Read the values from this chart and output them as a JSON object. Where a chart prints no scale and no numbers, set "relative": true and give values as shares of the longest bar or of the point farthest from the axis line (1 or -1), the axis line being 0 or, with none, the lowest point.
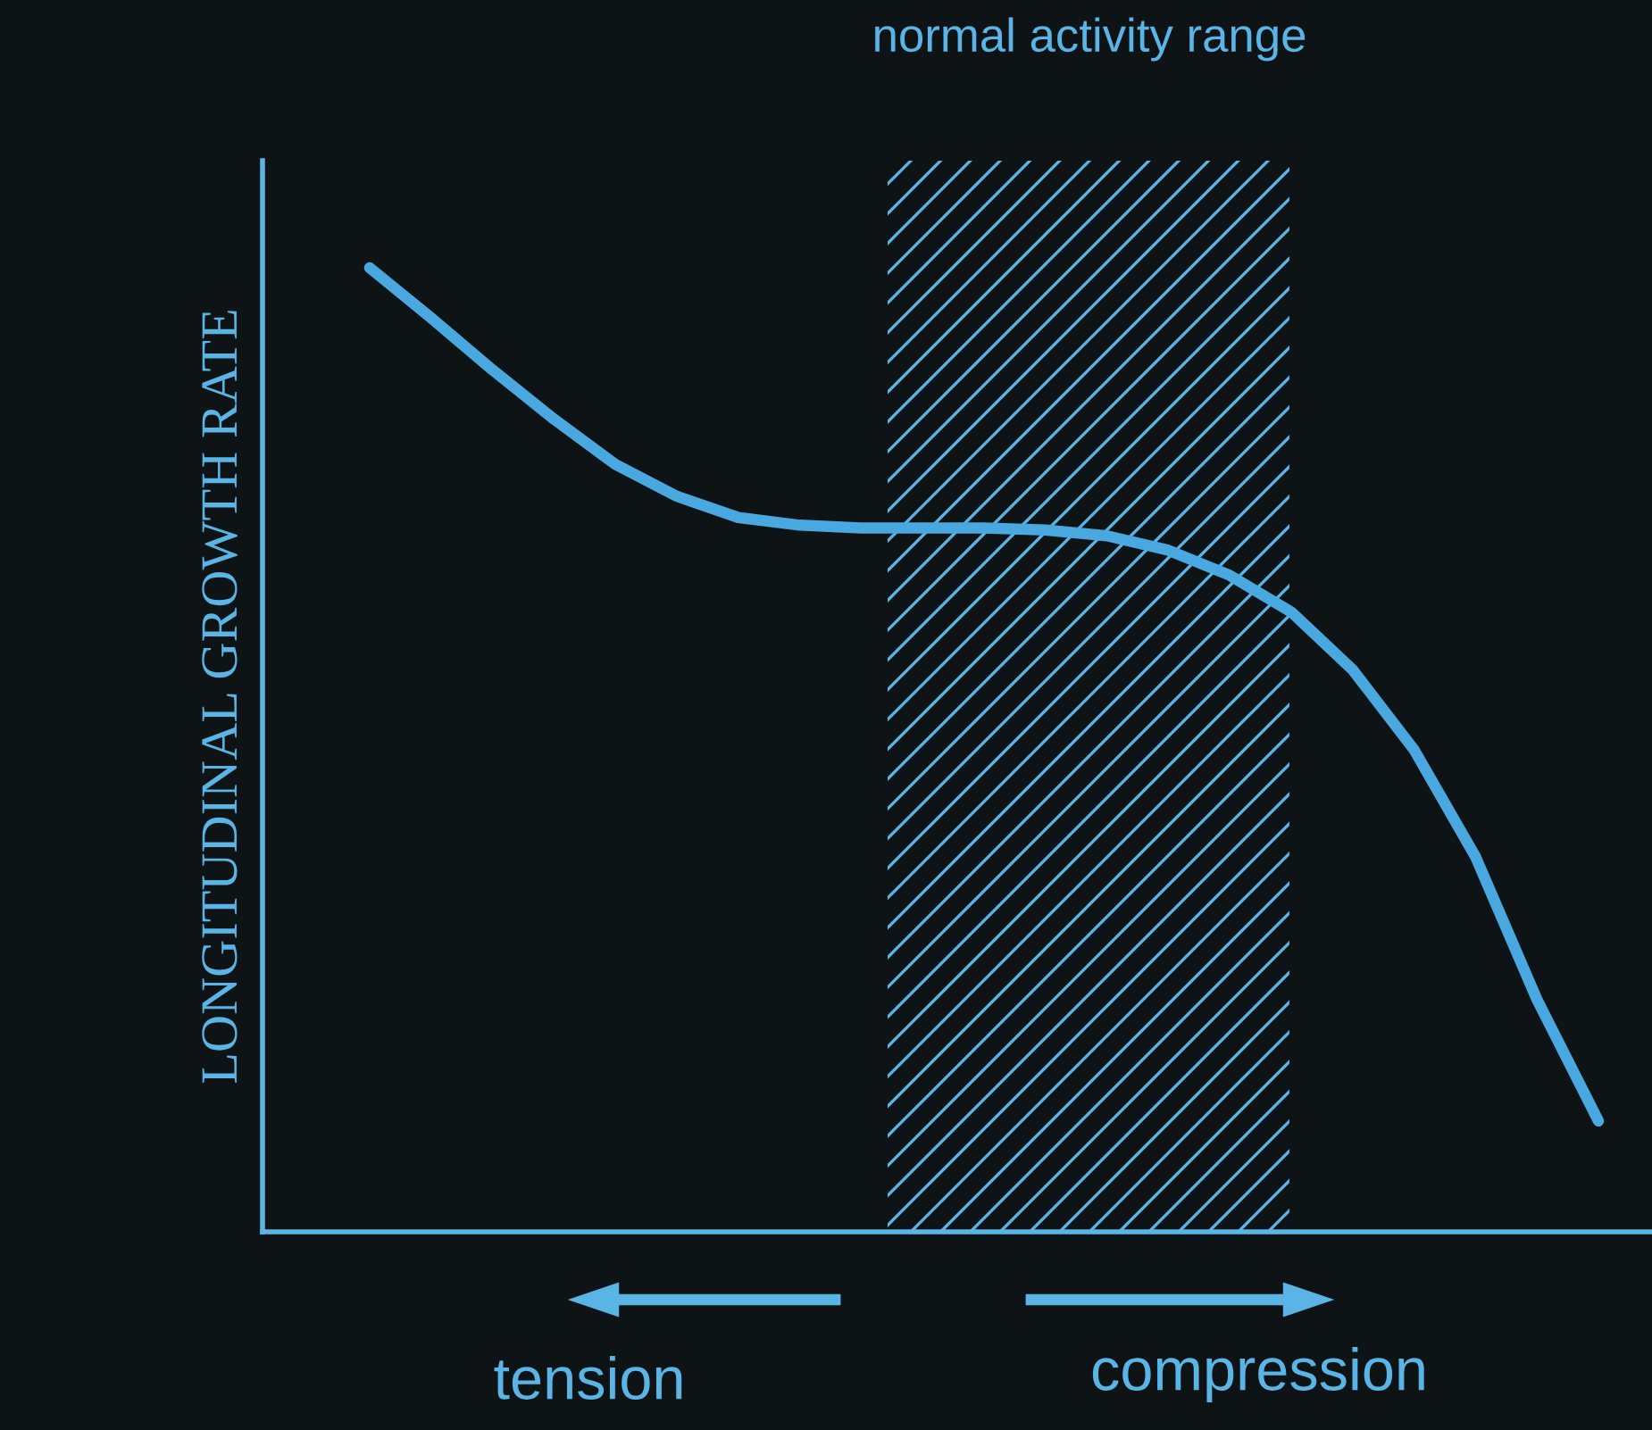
{
  "chart_data": {
    "type": "line",
    "relative": true,
    "ylabel": "LONGITUDINAL GROWTH RATE",
    "categories": [
      null,
      null,
      null,
      null,
      null,
      null,
      null,
      null,
      null,
      null,
      null,
      null,
      null,
      null,
      null,
      null,
      null,
      null,
      null,
      null,
      null
    ],
    "series": [
      {
        "color": "#4aa8e0",
        "values": [
          1,
          0.948,
          0.894,
          0.843,
          0.796,
          0.763,
          0.741,
          0.733,
          0.73,
          0.73,
          0.73,
          0.728,
          0.722,
          0.707,
          0.681,
          0.643,
          0.583,
          0.5,
          0.389,
          0.241,
          0.115
        ]
      }
    ],
    "annotations": [
      "normal activity range",
      "tension",
      "compression"
    ],
    "legend": false,
    "marker": "none",
    "line_style": "solid"
  }
}
